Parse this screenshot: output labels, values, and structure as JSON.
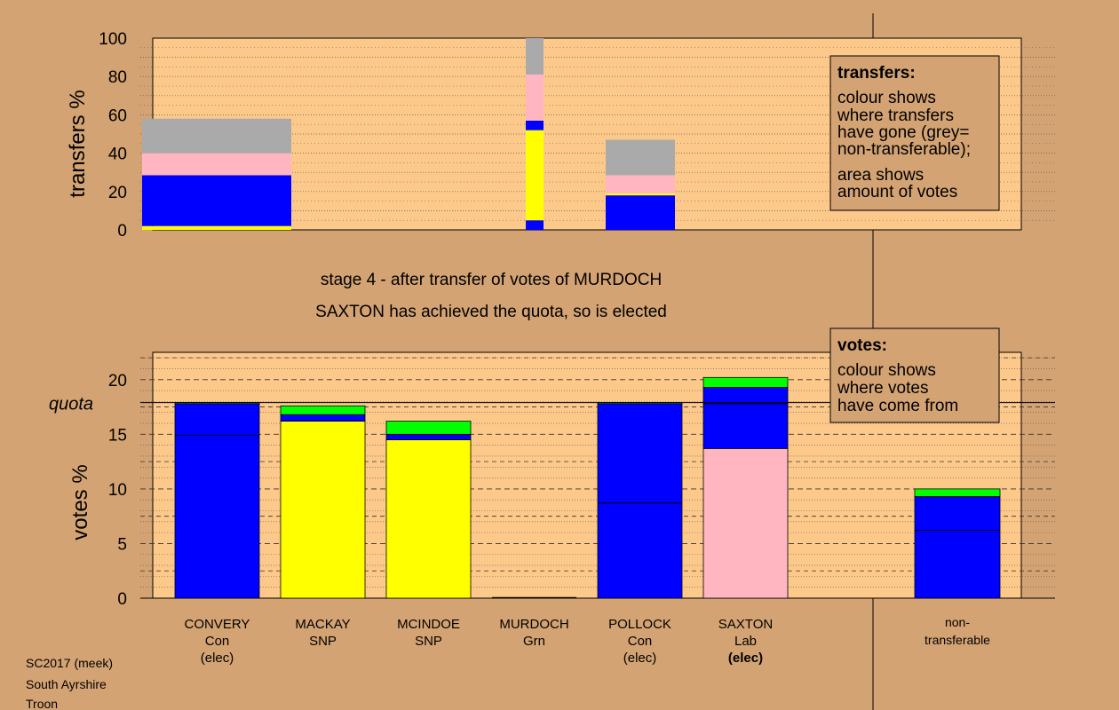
{
  "colors": {
    "background": "#d4a373",
    "plot_area": "#fdc98a",
    "Con": "#0000ff",
    "SNP": "#ffff00",
    "Grn": "#00ff00",
    "Lab": "#ffb6c1",
    "non_transferable": "#aaaaaa",
    "legend_box": "#d4a373"
  },
  "stage_text": {
    "line1": "stage 4 - after transfer of votes of MURDOCH",
    "line2": "SAXTON has achieved the quota, so is elected"
  },
  "transfers_legend": {
    "title": "transfers:",
    "lines1": [
      "colour shows",
      "where transfers",
      "have gone (grey=",
      "non-transferable);"
    ],
    "lines2": [
      "area shows",
      "amount of votes"
    ]
  },
  "votes_legend": {
    "title": "votes:",
    "lines": [
      "colour shows",
      "where votes",
      "have come from"
    ]
  },
  "footer": {
    "line1": "SC2017 (meek)",
    "line2": "South Ayrshire",
    "line3": "Troon"
  },
  "chart_data": [
    {
      "type": "bar",
      "name": "transfers",
      "ylabel": "transfers %",
      "ylim": [
        0,
        100
      ],
      "yticks": [
        0,
        20,
        40,
        60,
        80,
        100
      ],
      "grid": true,
      "bars": [
        {
          "target": "CONVERY",
          "segments": [
            {
              "party": "SNP",
              "from": 0,
              "to": 2
            },
            {
              "party": "Con",
              "from": 2,
              "to": 28.5
            },
            {
              "party": "Lab",
              "from": 28.5,
              "to": 40
            },
            {
              "party": "non_transferable",
              "from": 40,
              "to": 58
            }
          ]
        },
        {
          "target": "MURDOCH",
          "segments": [
            {
              "party": "Con",
              "from": 0,
              "to": 5
            },
            {
              "party": "SNP",
              "from": 5,
              "to": 52
            },
            {
              "party": "Con",
              "from": 52,
              "to": 57
            },
            {
              "party": "Lab",
              "from": 57,
              "to": 81
            },
            {
              "party": "non_transferable",
              "from": 81,
              "to": 100
            }
          ]
        },
        {
          "target": "POLLOCK",
          "segments": [
            {
              "party": "Con",
              "from": 0,
              "to": 18
            },
            {
              "party": "SNP",
              "from": 18,
              "to": 19
            },
            {
              "party": "Lab",
              "from": 19,
              "to": 28.5
            },
            {
              "party": "non_transferable",
              "from": 28.5,
              "to": 47
            }
          ]
        }
      ]
    },
    {
      "type": "bar",
      "name": "votes",
      "ylabel": "votes %",
      "ylim": [
        0,
        22.5
      ],
      "yticks": [
        0,
        5,
        10,
        15,
        20
      ],
      "quota": 17.9,
      "quota_label": "quota",
      "grid": true,
      "candidates": [
        {
          "name": "CONVERY",
          "party": "Con",
          "status": "(elec)",
          "divider": 14.9,
          "segments": [
            {
              "party": "Con",
              "from": 0,
              "to": 17.8
            },
            {
              "party": "Grn",
              "from": 17.8,
              "to": 17.9
            }
          ]
        },
        {
          "name": "MACKAY",
          "party": "SNP",
          "status": "",
          "divider": null,
          "segments": [
            {
              "party": "SNP",
              "from": 0,
              "to": 16.2
            },
            {
              "party": "Con",
              "from": 16.2,
              "to": 16.8
            },
            {
              "party": "Grn",
              "from": 16.8,
              "to": 17.6
            }
          ]
        },
        {
          "name": "MCINDOE",
          "party": "SNP",
          "status": "",
          "divider": null,
          "segments": [
            {
              "party": "SNP",
              "from": 0,
              "to": 14.5
            },
            {
              "party": "Con",
              "from": 14.5,
              "to": 15.0
            },
            {
              "party": "Grn",
              "from": 15.0,
              "to": 16.2
            }
          ]
        },
        {
          "name": "MURDOCH",
          "party": "Grn",
          "status": "",
          "divider": null,
          "segments": []
        },
        {
          "name": "POLLOCK",
          "party": "Con",
          "status": "(elec)",
          "divider": 8.7,
          "segments": [
            {
              "party": "Con",
              "from": 0,
              "to": 17.8
            },
            {
              "party": "Grn",
              "from": 17.8,
              "to": 17.9
            }
          ]
        },
        {
          "name": "SAXTON",
          "party": "Lab",
          "status": "(elec)",
          "divider": 17.8,
          "segments": [
            {
              "party": "Lab",
              "from": 0,
              "to": 13.7
            },
            {
              "party": "Con",
              "from": 13.7,
              "to": 19.3
            },
            {
              "party": "Grn",
              "from": 19.3,
              "to": 20.2
            }
          ]
        }
      ],
      "non_transferable": {
        "label1": "non-",
        "label2": "transferable",
        "divider": 6.2,
        "segments": [
          {
            "party": "Con",
            "from": 0,
            "to": 9.3
          },
          {
            "party": "Grn",
            "from": 9.3,
            "to": 10.0
          }
        ]
      }
    }
  ]
}
